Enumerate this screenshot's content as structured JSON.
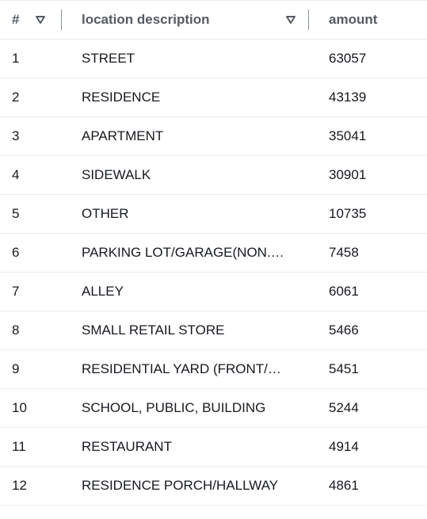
{
  "headers": {
    "number": "#",
    "location": "location description",
    "amount": "amount"
  },
  "icons": {
    "sort": "sort-down-triangle-icon"
  },
  "rows": [
    {
      "n": "1",
      "location": "STREET",
      "amount": "63057"
    },
    {
      "n": "2",
      "location": "RESIDENCE",
      "amount": "43139"
    },
    {
      "n": "3",
      "location": "APARTMENT",
      "amount": "35041"
    },
    {
      "n": "4",
      "location": "SIDEWALK",
      "amount": "30901"
    },
    {
      "n": "5",
      "location": "OTHER",
      "amount": "10735"
    },
    {
      "n": "6",
      "location": "PARKING LOT/GARAGE(NON.RESIDENTIAL)",
      "amount": "7458"
    },
    {
      "n": "7",
      "location": "ALLEY",
      "amount": "6061"
    },
    {
      "n": "8",
      "location": "SMALL RETAIL STORE",
      "amount": "5466"
    },
    {
      "n": "9",
      "location": "RESIDENTIAL YARD (FRONT/BACK)",
      "amount": "5451"
    },
    {
      "n": "10",
      "location": "SCHOOL, PUBLIC, BUILDING",
      "amount": "5244"
    },
    {
      "n": "11",
      "location": "RESTAURANT",
      "amount": "4914"
    },
    {
      "n": "12",
      "location": "RESIDENCE PORCH/HALLWAY",
      "amount": "4861"
    }
  ]
}
